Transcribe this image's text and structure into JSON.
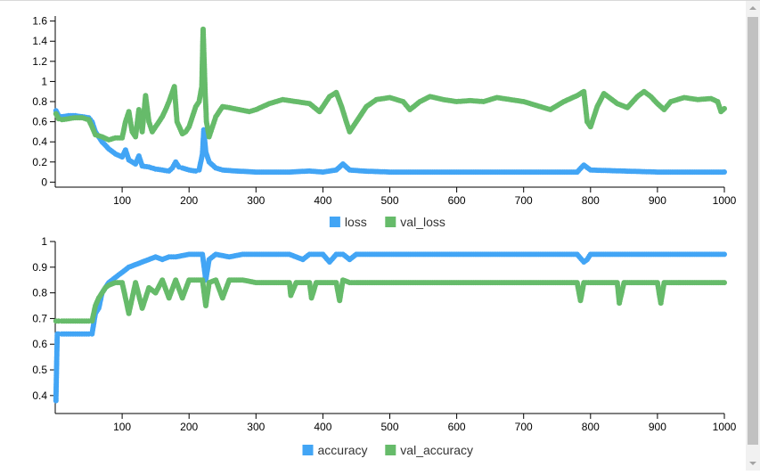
{
  "chart_data": [
    {
      "type": "line",
      "title": "",
      "xlabel": "",
      "ylabel": "",
      "xlim": [
        0,
        1000
      ],
      "ylim": [
        -0.05,
        1.65
      ],
      "x_ticks": [
        100,
        200,
        300,
        400,
        500,
        600,
        700,
        800,
        900,
        1000
      ],
      "x_tick_labels": [
        "100",
        "200",
        "300",
        "400",
        "500",
        "600",
        "700",
        "800",
        "900",
        "1000"
      ],
      "y_ticks": [
        0,
        0.2,
        0.4,
        0.6,
        0.8,
        1,
        1.2,
        1.4,
        1.6
      ],
      "y_tick_labels": [
        "0",
        "0.2",
        "0.4",
        "0.6",
        "0.8",
        "1",
        "1.2",
        "1.4",
        "1.6"
      ],
      "markers": true,
      "grid": false,
      "legend_position": "bottom-center",
      "series": [
        {
          "name": "loss",
          "color": "#42a5f5",
          "x": [
            1,
            5,
            10,
            20,
            30,
            40,
            50,
            55,
            60,
            70,
            80,
            90,
            100,
            105,
            110,
            115,
            120,
            125,
            130,
            140,
            150,
            160,
            170,
            175,
            180,
            185,
            190,
            200,
            210,
            215,
            220,
            222,
            225,
            230,
            240,
            250,
            270,
            300,
            350,
            380,
            400,
            420,
            430,
            440,
            460,
            500,
            550,
            600,
            650,
            700,
            750,
            780,
            790,
            800,
            850,
            900,
            950,
            1000
          ],
          "y": [
            0.71,
            0.66,
            0.65,
            0.66,
            0.66,
            0.65,
            0.64,
            0.6,
            0.5,
            0.4,
            0.33,
            0.28,
            0.25,
            0.32,
            0.22,
            0.2,
            0.18,
            0.26,
            0.16,
            0.15,
            0.13,
            0.12,
            0.11,
            0.14,
            0.2,
            0.15,
            0.14,
            0.12,
            0.11,
            0.12,
            0.28,
            0.52,
            0.3,
            0.2,
            0.14,
            0.12,
            0.11,
            0.1,
            0.1,
            0.11,
            0.1,
            0.12,
            0.18,
            0.12,
            0.11,
            0.1,
            0.1,
            0.1,
            0.1,
            0.1,
            0.1,
            0.1,
            0.17,
            0.12,
            0.11,
            0.1,
            0.1,
            0.1
          ]
        },
        {
          "name": "val_loss",
          "color": "#66bb6a",
          "x": [
            1,
            5,
            10,
            20,
            30,
            40,
            50,
            55,
            60,
            70,
            80,
            90,
            100,
            105,
            110,
            115,
            120,
            125,
            130,
            135,
            140,
            145,
            150,
            155,
            160,
            165,
            170,
            178,
            182,
            190,
            195,
            200,
            205,
            210,
            215,
            219,
            221,
            224,
            226,
            230,
            235,
            240,
            245,
            250,
            260,
            275,
            290,
            300,
            320,
            340,
            360,
            380,
            395,
            410,
            420,
            428,
            435,
            440,
            450,
            465,
            480,
            500,
            520,
            530,
            545,
            560,
            580,
            600,
            620,
            640,
            660,
            680,
            700,
            720,
            740,
            760,
            780,
            785,
            790,
            795,
            800,
            810,
            820,
            840,
            855,
            870,
            880,
            890,
            900,
            910,
            920,
            940,
            960,
            980,
            990,
            995,
            1000
          ],
          "y": [
            0.68,
            0.63,
            0.62,
            0.63,
            0.64,
            0.64,
            0.62,
            0.55,
            0.47,
            0.45,
            0.42,
            0.44,
            0.44,
            0.6,
            0.7,
            0.5,
            0.45,
            0.72,
            0.5,
            0.86,
            0.6,
            0.5,
            0.55,
            0.6,
            0.65,
            0.72,
            0.8,
            0.95,
            0.6,
            0.48,
            0.5,
            0.55,
            0.65,
            0.75,
            0.8,
            0.95,
            1.52,
            0.9,
            0.6,
            0.45,
            0.55,
            0.65,
            0.7,
            0.75,
            0.74,
            0.72,
            0.7,
            0.72,
            0.78,
            0.82,
            0.8,
            0.78,
            0.7,
            0.85,
            0.89,
            0.75,
            0.6,
            0.5,
            0.6,
            0.75,
            0.82,
            0.84,
            0.8,
            0.72,
            0.8,
            0.85,
            0.82,
            0.8,
            0.81,
            0.8,
            0.84,
            0.82,
            0.8,
            0.76,
            0.72,
            0.8,
            0.86,
            0.88,
            0.9,
            0.6,
            0.55,
            0.75,
            0.88,
            0.78,
            0.74,
            0.85,
            0.9,
            0.85,
            0.78,
            0.72,
            0.8,
            0.84,
            0.82,
            0.83,
            0.8,
            0.7,
            0.73
          ]
        }
      ]
    },
    {
      "type": "line",
      "title": "",
      "xlabel": "",
      "ylabel": "",
      "xlim": [
        0,
        1000
      ],
      "ylim": [
        0.33,
        1
      ],
      "x_ticks": [
        100,
        200,
        300,
        400,
        500,
        600,
        700,
        800,
        900,
        1000
      ],
      "x_tick_labels": [
        "100",
        "200",
        "300",
        "400",
        "500",
        "600",
        "700",
        "800",
        "900",
        "1000"
      ],
      "y_ticks": [
        0.4,
        0.5,
        0.6,
        0.7,
        0.8,
        0.9,
        1
      ],
      "y_tick_labels": [
        "0.4",
        "0.5",
        "0.6",
        "0.7",
        "0.8",
        "0.9",
        "1"
      ],
      "markers": true,
      "grid": false,
      "legend_position": "bottom-center",
      "series": [
        {
          "name": "accuracy",
          "color": "#42a5f5",
          "x": [
            1,
            3,
            5,
            10,
            20,
            30,
            40,
            50,
            55,
            60,
            65,
            70,
            80,
            90,
            100,
            110,
            120,
            130,
            140,
            150,
            160,
            170,
            180,
            200,
            220,
            225,
            230,
            240,
            260,
            280,
            300,
            350,
            370,
            380,
            400,
            410,
            420,
            430,
            440,
            450,
            500,
            550,
            600,
            650,
            700,
            750,
            780,
            790,
            795,
            800,
            850,
            900,
            950,
            1000
          ],
          "y": [
            0.38,
            0.64,
            0.64,
            0.64,
            0.64,
            0.64,
            0.64,
            0.64,
            0.64,
            0.72,
            0.74,
            0.8,
            0.84,
            0.86,
            0.88,
            0.9,
            0.91,
            0.92,
            0.93,
            0.94,
            0.93,
            0.94,
            0.94,
            0.95,
            0.95,
            0.85,
            0.93,
            0.95,
            0.94,
            0.95,
            0.95,
            0.95,
            0.93,
            0.95,
            0.95,
            0.92,
            0.95,
            0.95,
            0.93,
            0.95,
            0.95,
            0.95,
            0.95,
            0.95,
            0.95,
            0.95,
            0.95,
            0.92,
            0.93,
            0.95,
            0.95,
            0.95,
            0.95,
            0.95
          ]
        },
        {
          "name": "val_accuracy",
          "color": "#66bb6a",
          "x": [
            1,
            5,
            10,
            20,
            30,
            40,
            50,
            55,
            60,
            65,
            70,
            75,
            80,
            90,
            100,
            110,
            115,
            120,
            130,
            140,
            150,
            160,
            170,
            180,
            190,
            200,
            220,
            225,
            230,
            240,
            250,
            260,
            280,
            300,
            350,
            352,
            360,
            380,
            383,
            390,
            420,
            425,
            430,
            440,
            450,
            500,
            550,
            600,
            650,
            700,
            750,
            780,
            785,
            790,
            800,
            840,
            843,
            850,
            900,
            905,
            910,
            950,
            1000
          ],
          "y": [
            0.69,
            0.69,
            0.69,
            0.69,
            0.69,
            0.69,
            0.69,
            0.69,
            0.75,
            0.78,
            0.8,
            0.82,
            0.83,
            0.84,
            0.84,
            0.72,
            0.78,
            0.84,
            0.74,
            0.82,
            0.8,
            0.85,
            0.78,
            0.85,
            0.78,
            0.85,
            0.85,
            0.75,
            0.84,
            0.85,
            0.78,
            0.85,
            0.85,
            0.84,
            0.84,
            0.79,
            0.84,
            0.84,
            0.78,
            0.84,
            0.84,
            0.77,
            0.85,
            0.84,
            0.84,
            0.84,
            0.84,
            0.84,
            0.84,
            0.84,
            0.84,
            0.84,
            0.77,
            0.84,
            0.84,
            0.84,
            0.76,
            0.84,
            0.84,
            0.76,
            0.84,
            0.84,
            0.84
          ]
        }
      ]
    }
  ]
}
